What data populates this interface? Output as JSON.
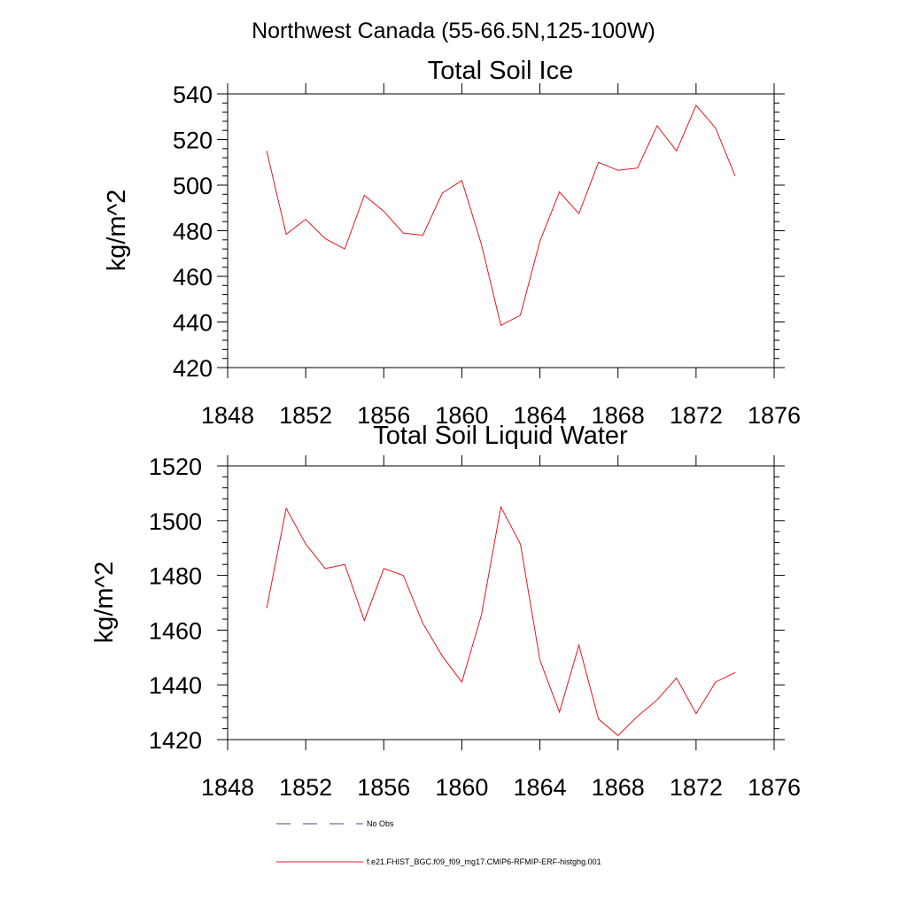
{
  "page_title": "Northwest Canada (55-66.5N,125-100W)",
  "chart_data": [
    {
      "type": "line",
      "title": "Total Soil Ice",
      "xlabel": "",
      "ylabel": "kg/m^2",
      "xlim": [
        1848,
        1876
      ],
      "ylim": [
        420,
        540
      ],
      "xticks": [
        1848,
        1852,
        1856,
        1860,
        1864,
        1868,
        1872,
        1876
      ],
      "yticks": [
        420,
        440,
        460,
        480,
        500,
        520,
        540
      ],
      "x": [
        1850,
        1851,
        1852,
        1853,
        1854,
        1855,
        1856,
        1857,
        1858,
        1859,
        1860,
        1861,
        1862,
        1863,
        1864,
        1865,
        1866,
        1867,
        1868,
        1869,
        1870,
        1871,
        1872,
        1873,
        1874
      ],
      "series": [
        {
          "name": "f.e21.FHIST_BGC.f09_f09_mg17.CMIP6-RFMIP-ERF-histghg.001",
          "color": "#e8141e",
          "values": [
            515,
            478.5,
            485,
            476.5,
            472,
            495.5,
            488.5,
            479,
            478,
            496.5,
            502,
            474,
            438.5,
            443,
            475.5,
            497,
            487.5,
            510,
            506.5,
            507.5,
            526,
            515,
            535,
            525,
            504
          ]
        }
      ]
    },
    {
      "type": "line",
      "title": "Total Soil Liquid Water",
      "xlabel": "",
      "ylabel": "kg/m^2",
      "xlim": [
        1848,
        1876
      ],
      "ylim": [
        1420,
        1520
      ],
      "xticks": [
        1848,
        1852,
        1856,
        1860,
        1864,
        1868,
        1872,
        1876
      ],
      "yticks": [
        1420,
        1440,
        1460,
        1480,
        1500,
        1520
      ],
      "x": [
        1850,
        1851,
        1852,
        1853,
        1854,
        1855,
        1856,
        1857,
        1858,
        1859,
        1860,
        1861,
        1862,
        1863,
        1864,
        1865,
        1866,
        1867,
        1868,
        1869,
        1870,
        1871,
        1872,
        1873,
        1874
      ],
      "series": [
        {
          "name": "f.e21.FHIST_BGC.f09_f09_mg17.CMIP6-RFMIP-ERF-histghg.001",
          "color": "#e8141e",
          "values": [
            1468,
            1504.5,
            1491.5,
            1482.5,
            1484,
            1463.5,
            1482.5,
            1480,
            1462.5,
            1450.5,
            1441,
            1465.5,
            1505,
            1491.5,
            1449,
            1430,
            1454.5,
            1427.5,
            1421.5,
            1428.5,
            1434.5,
            1442.5,
            1429.5,
            1441,
            1444.5
          ]
        }
      ]
    }
  ],
  "legend": {
    "items": [
      {
        "label": "No Obs",
        "color": "#4a4a8a",
        "style": "dashed"
      },
      {
        "label": "f.e21.FHIST_BGC.f09_f09_mg17.CMIP6-RFMIP-ERF-histghg.001",
        "color": "#e8141e",
        "style": "solid"
      }
    ]
  }
}
